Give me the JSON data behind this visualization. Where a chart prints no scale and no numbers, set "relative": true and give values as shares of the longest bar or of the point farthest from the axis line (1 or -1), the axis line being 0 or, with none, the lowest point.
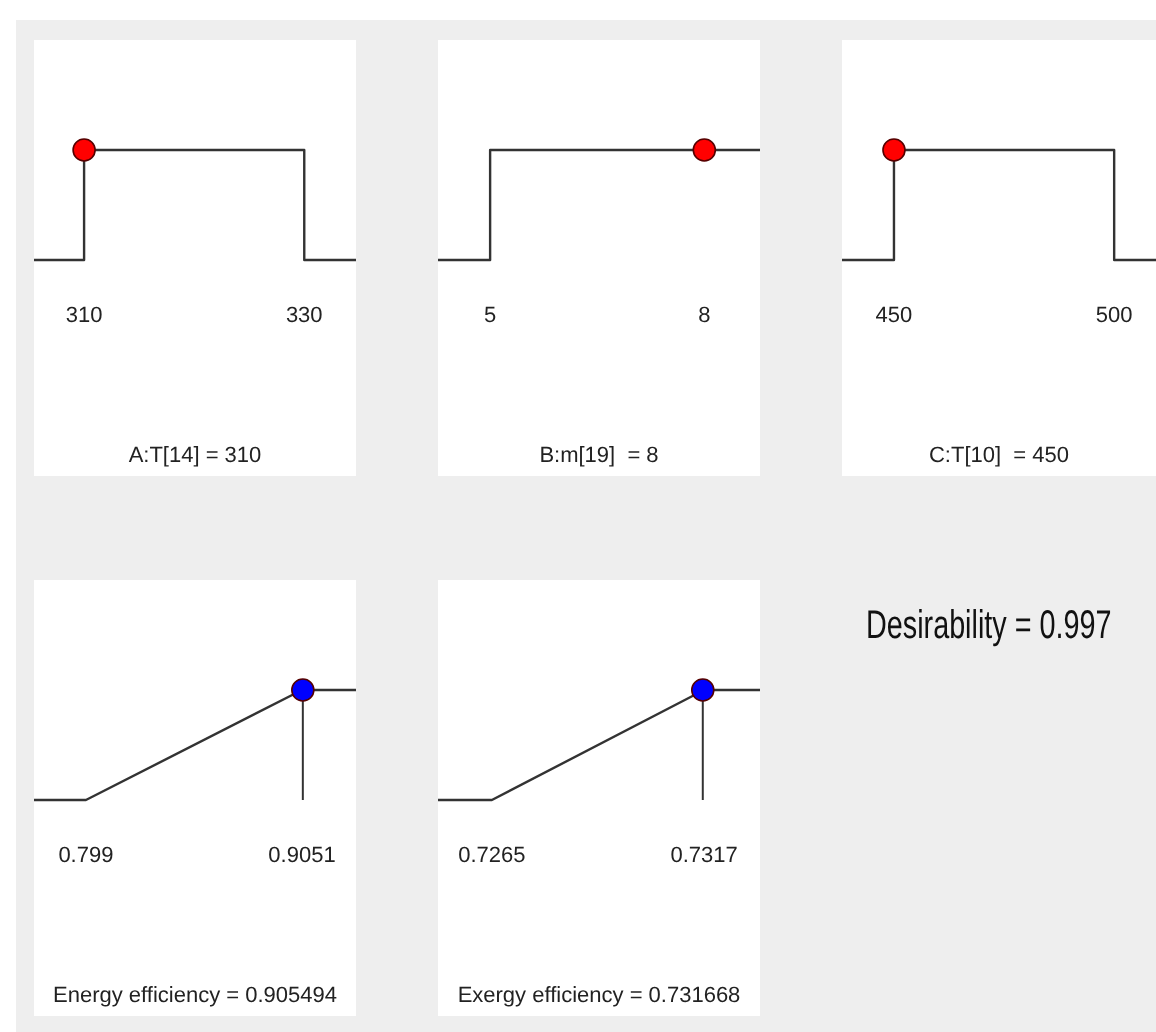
{
  "chart_data": [
    {
      "type": "line",
      "relative": true,
      "xlim": [
        305.45,
        334.7
      ],
      "xticks": [
        310,
        330
      ],
      "xlabel": "A:T[14] = 310",
      "series": [
        {
          "type": "line",
          "color": "#333333",
          "x": [
            305.45,
            310,
            310,
            330,
            330,
            334.7
          ],
          "values": [
            0,
            0,
            1,
            1,
            0,
            0
          ]
        },
        {
          "type": "scatter",
          "color": "#ff0000",
          "marker": "circle",
          "x": [
            310
          ],
          "values": [
            1
          ]
        }
      ]
    },
    {
      "type": "line",
      "relative": true,
      "xlim": [
        4.27,
        8.78
      ],
      "xticks": [
        5,
        8
      ],
      "xlabel": "B:m[19]  = 8",
      "series": [
        {
          "type": "line",
          "color": "#333333",
          "x": [
            4.27,
            5,
            5,
            8,
            8.78
          ],
          "values": [
            0,
            0,
            1,
            1,
            1
          ]
        },
        {
          "type": "scatter",
          "color": "#ff0000",
          "marker": "circle",
          "x": [
            8
          ],
          "values": [
            1
          ]
        }
      ]
    },
    {
      "type": "line",
      "relative": true,
      "xlim": [
        438.2,
        509.5
      ],
      "xticks": [
        450,
        500
      ],
      "xlabel": "C:T[10]  = 450",
      "series": [
        {
          "type": "line",
          "color": "#333333",
          "x": [
            438.2,
            450,
            450,
            500,
            500,
            509.5
          ],
          "values": [
            0,
            0,
            1,
            1,
            0,
            0
          ]
        },
        {
          "type": "scatter",
          "color": "#ff0000",
          "marker": "circle",
          "x": [
            450
          ],
          "values": [
            1
          ]
        }
      ]
    },
    {
      "type": "line",
      "relative": true,
      "xlim": [
        0.7735,
        0.9316
      ],
      "xticks": [
        0.799,
        0.9051
      ],
      "xlabel": "Energy efficiency = 0.905494",
      "ref_lines": [
        {
          "axis": "x",
          "value": 0.905494,
          "color": "#333333"
        }
      ],
      "series": [
        {
          "type": "line",
          "color": "#333333",
          "x": [
            0.7735,
            0.799,
            0.9051,
            0.9316
          ],
          "values": [
            0,
            0,
            1,
            1
          ]
        },
        {
          "type": "scatter",
          "color": "#0000ff",
          "marker": "circle",
          "x": [
            0.905494
          ],
          "values": [
            1
          ]
        }
      ]
    },
    {
      "type": "line",
      "relative": true,
      "xlim": [
        0.72518,
        0.73307
      ],
      "xticks": [
        0.7265,
        0.7317
      ],
      "xlabel": "Exergy efficiency = 0.731668",
      "ref_lines": [
        {
          "axis": "x",
          "value": 0.731668,
          "color": "#333333"
        }
      ],
      "series": [
        {
          "type": "line",
          "color": "#333333",
          "x": [
            0.72518,
            0.7265,
            0.7317,
            0.73307
          ],
          "values": [
            0,
            0,
            1,
            1
          ]
        },
        {
          "type": "scatter",
          "color": "#0000ff",
          "marker": "circle",
          "x": [
            0.731668
          ],
          "values": [
            1
          ]
        }
      ]
    },
    {
      "type": "other",
      "title": "Desirability = 0.997"
    }
  ]
}
